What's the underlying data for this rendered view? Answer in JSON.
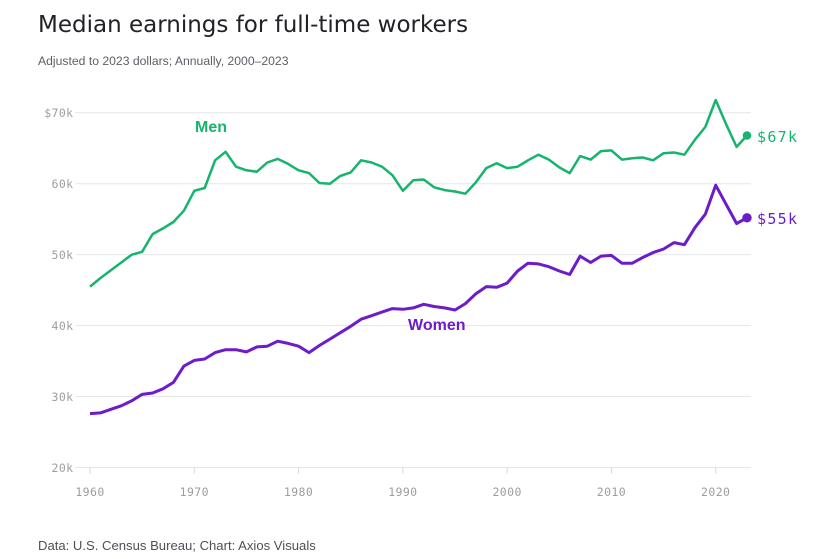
{
  "header": {
    "title": "Median earnings for full-time workers",
    "subtitle": "Adjusted to 2023 dollars; Annually, 2000–2023"
  },
  "footer": {
    "source": "Data: U.S. Census Bureau; Chart: Axios Visuals"
  },
  "colors": {
    "men": "#16b46c",
    "women": "#6d1cca",
    "grid": "#e5e6e8",
    "tick_mark": "#d8d9db",
    "axis_text": "#9b9da2"
  },
  "chart_data": {
    "type": "line",
    "title": "Median earnings for full-time workers",
    "subtitle": "Adjusted to 2023 dollars; Annually, 2000–2023",
    "source": "Data: U.S. Census Bureau; Chart: Axios Visuals",
    "xlabel": "",
    "ylabel": "",
    "x_ticks": [
      1960,
      1970,
      1980,
      1990,
      2000,
      2010,
      2020
    ],
    "x_tick_labels": [
      "1960",
      "1970",
      "1980",
      "1990",
      "2000",
      "2010",
      "2020"
    ],
    "y_ticks": [
      20,
      30,
      40,
      50,
      60,
      70
    ],
    "y_tick_labels": [
      "20k",
      "30k",
      "40k",
      "50k",
      "60k",
      "$70k"
    ],
    "x_range": [
      1960,
      2023
    ],
    "y_range_thousands": [
      20,
      70
    ],
    "grid": "horizontal",
    "legend_position": "inline-labels",
    "x": [
      1960,
      1961,
      1962,
      1963,
      1964,
      1965,
      1966,
      1967,
      1968,
      1969,
      1970,
      1971,
      1972,
      1973,
      1974,
      1975,
      1976,
      1977,
      1978,
      1979,
      1980,
      1981,
      1982,
      1983,
      1984,
      1985,
      1986,
      1987,
      1988,
      1989,
      1990,
      1991,
      1992,
      1993,
      1994,
      1995,
      1996,
      1997,
      1998,
      1999,
      2000,
      2001,
      2002,
      2003,
      2004,
      2005,
      2006,
      2007,
      2008,
      2009,
      2010,
      2011,
      2012,
      2013,
      2014,
      2015,
      2016,
      2017,
      2018,
      2019,
      2020,
      2021,
      2022,
      2023
    ],
    "series": [
      {
        "name": "Men",
        "label": "Men",
        "end_label": "$67k",
        "color": "#16b46c",
        "values_thousands": [
          45.5,
          46.7,
          47.8,
          48.9,
          50.0,
          50.4,
          52.9,
          53.7,
          54.6,
          56.2,
          59.0,
          59.4,
          63.3,
          64.5,
          62.4,
          61.9,
          61.7,
          63.0,
          63.5,
          62.8,
          61.9,
          61.5,
          60.1,
          60.0,
          61.1,
          61.6,
          63.3,
          63.0,
          62.4,
          61.2,
          59.0,
          60.5,
          60.6,
          59.5,
          59.1,
          58.9,
          58.6,
          60.2,
          62.2,
          62.9,
          62.2,
          62.4,
          63.3,
          64.1,
          63.4,
          62.3,
          61.5,
          63.9,
          63.4,
          64.6,
          64.7,
          63.4,
          63.6,
          63.7,
          63.3,
          64.3,
          64.4,
          64.1,
          66.2,
          68.0,
          71.8,
          68.4,
          65.2,
          66.8
        ]
      },
      {
        "name": "Women",
        "label": "Women",
        "end_label": "$55k",
        "color": "#6d1cca",
        "values_thousands": [
          27.6,
          27.7,
          28.2,
          28.7,
          29.4,
          30.3,
          30.5,
          31.1,
          32.0,
          34.3,
          35.1,
          35.3,
          36.2,
          36.6,
          36.6,
          36.3,
          37.0,
          37.1,
          37.8,
          37.5,
          37.1,
          36.2,
          37.2,
          38.1,
          39.0,
          39.9,
          40.9,
          41.4,
          41.9,
          42.4,
          42.3,
          42.5,
          43.0,
          42.7,
          42.5,
          42.2,
          43.1,
          44.5,
          45.5,
          45.4,
          46.0,
          47.7,
          48.8,
          48.7,
          48.3,
          47.7,
          47.2,
          49.8,
          48.9,
          49.8,
          49.9,
          48.8,
          48.8,
          49.6,
          50.3,
          50.8,
          51.7,
          51.4,
          53.8,
          55.7,
          59.8,
          57.1,
          54.4,
          55.2
        ]
      }
    ]
  }
}
